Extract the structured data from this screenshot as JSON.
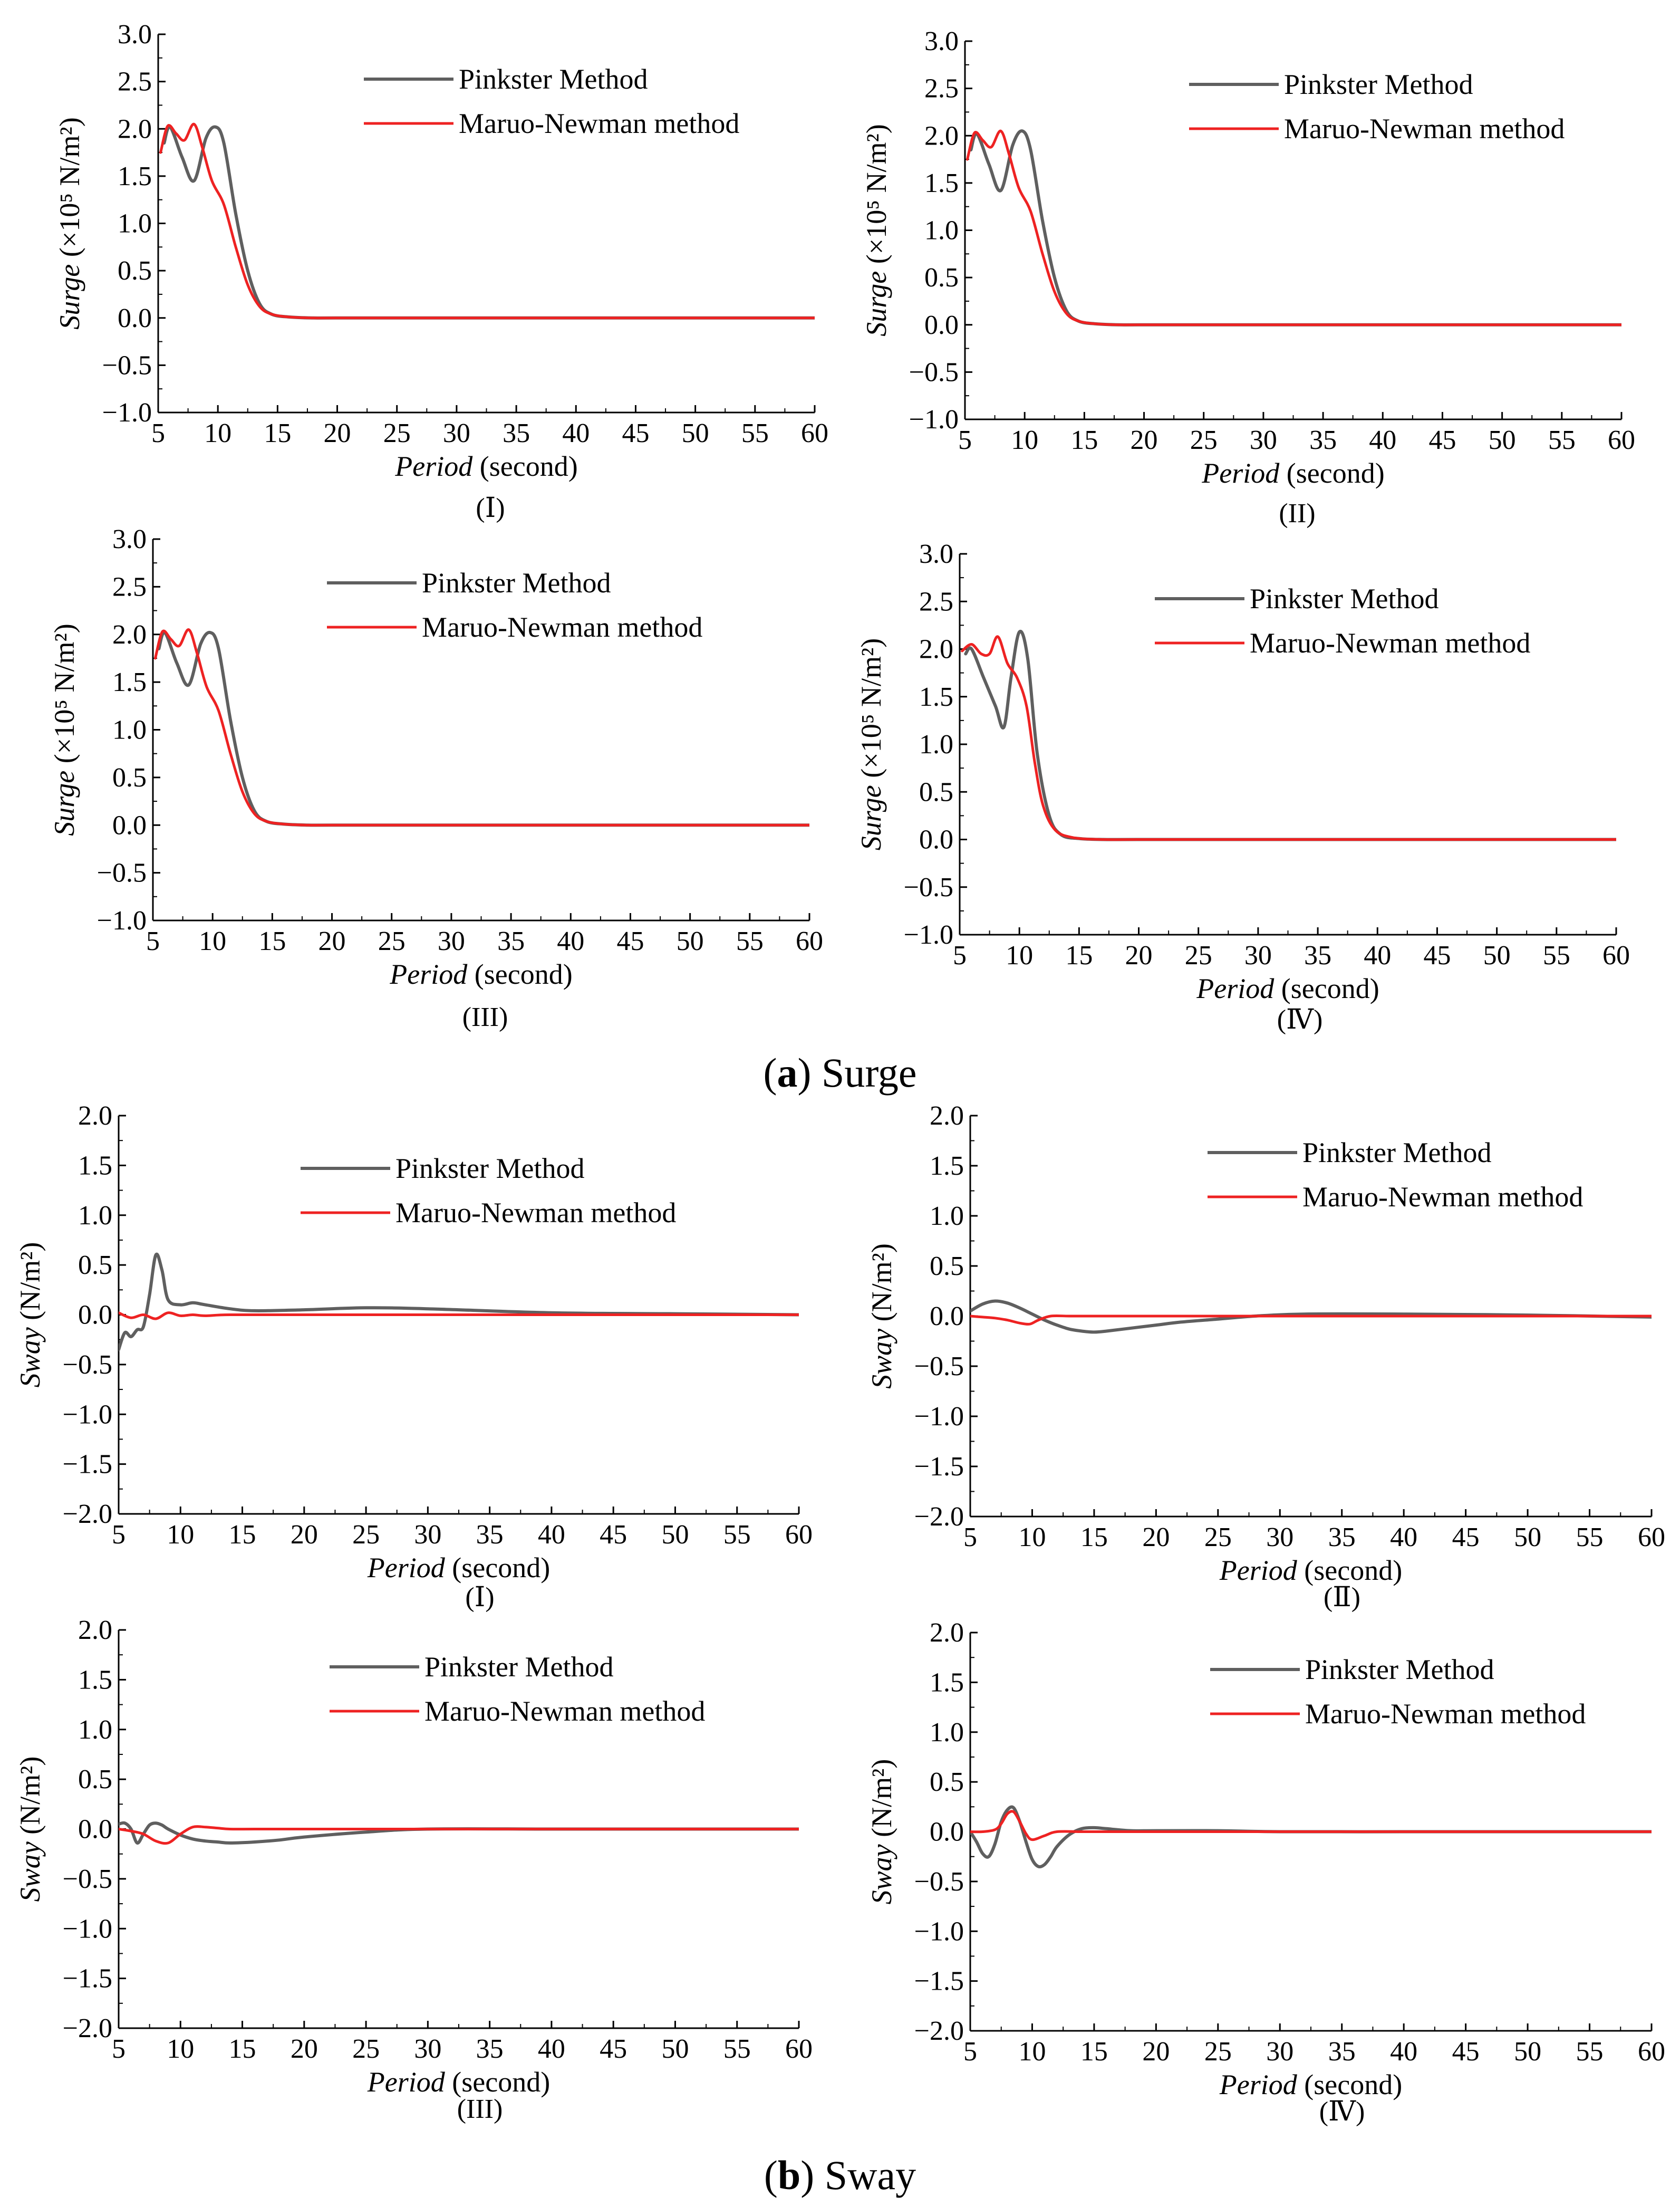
{
  "figure": {
    "caption_a": {
      "letter": "a",
      "text": "Surge"
    },
    "caption_b": {
      "letter": "b",
      "text": "Sway"
    }
  },
  "colors": {
    "pinkster": "#5f5f5f",
    "maruo": "#ee2222",
    "axis": "#000000"
  },
  "chart_data": [
    {
      "type": "line",
      "group": "a",
      "panel": "(Ⅰ)",
      "ylabel_var": "Surge",
      "ylabel_unit": " (×10⁵ N/m²)",
      "xlabel_var": "Period",
      "xlabel_unit": " (second)",
      "xlim": [
        5,
        60
      ],
      "ylim": [
        -1.0,
        3.0
      ],
      "xticks": [
        "5",
        "10",
        "15",
        "20",
        "25",
        "30",
        "35",
        "40",
        "45",
        "50",
        "55",
        "60"
      ],
      "yticks": [
        "−1.0",
        "−0.5",
        "0.0",
        "0.5",
        "1.0",
        "1.5",
        "2.0",
        "2.5",
        "3.0"
      ],
      "legend": [
        "Pinkster Method",
        "Maruo-Newman method"
      ],
      "series": [
        {
          "name": "Pinkster Method",
          "x": [
            5.5,
            6,
            7,
            8,
            9,
            9.8,
            10.5,
            11.5,
            12.5,
            13.5,
            14.5,
            16,
            18,
            20,
            30,
            40,
            50,
            60
          ],
          "y": [
            1.85,
            2.02,
            1.7,
            1.45,
            1.9,
            2.02,
            1.85,
            1.1,
            0.5,
            0.15,
            0.04,
            0.01,
            0,
            0,
            0,
            0,
            0,
            0
          ]
        },
        {
          "name": "Maruo-Newman method",
          "x": [
            5.2,
            5.8,
            6.5,
            7.2,
            8,
            8.7,
            9.5,
            10.5,
            11.5,
            12.5,
            13.5,
            14.5,
            16,
            18,
            20,
            30,
            40,
            50,
            60
          ],
          "y": [
            1.75,
            2.03,
            1.95,
            1.88,
            2.05,
            1.8,
            1.45,
            1.2,
            0.75,
            0.35,
            0.12,
            0.04,
            0.01,
            0,
            0,
            0,
            0,
            0,
            0
          ]
        }
      ]
    },
    {
      "type": "line",
      "group": "a",
      "panel": "(II)",
      "ylabel_var": "Surge",
      "ylabel_unit": " (×10⁵ N/m²)",
      "xlabel_var": "Period",
      "xlabel_unit": " (second)",
      "xlim": [
        5,
        60
      ],
      "ylim": [
        -1.0,
        3.0
      ],
      "xticks": [
        "5",
        "10",
        "15",
        "20",
        "25",
        "30",
        "35",
        "40",
        "45",
        "50",
        "55",
        "60"
      ],
      "yticks": [
        "−1.0",
        "−0.5",
        "0.0",
        "0.5",
        "1.0",
        "1.5",
        "2.0",
        "2.5",
        "3.0"
      ],
      "legend": [
        "Pinkster Method",
        "Maruo-Newman method"
      ],
      "series": [
        {
          "name": "Pinkster Method",
          "x": [
            5.5,
            6,
            7,
            8,
            9,
            9.8,
            10.5,
            11.5,
            12.5,
            13.5,
            14.5,
            16,
            18,
            20,
            30,
            40,
            50,
            60
          ],
          "y": [
            1.85,
            2.02,
            1.7,
            1.42,
            1.9,
            2.05,
            1.85,
            1.1,
            0.5,
            0.15,
            0.04,
            0.01,
            0,
            0,
            0,
            0,
            0,
            0
          ]
        },
        {
          "name": "Maruo-Newman method",
          "x": [
            5.2,
            5.8,
            6.5,
            7.2,
            8,
            8.7,
            9.5,
            10.5,
            11.5,
            12.5,
            13.5,
            14.5,
            16,
            18,
            20,
            30,
            40,
            50,
            60
          ],
          "y": [
            1.75,
            2.03,
            1.95,
            1.88,
            2.05,
            1.8,
            1.45,
            1.2,
            0.75,
            0.35,
            0.12,
            0.04,
            0.01,
            0,
            0,
            0,
            0,
            0,
            0
          ]
        }
      ]
    },
    {
      "type": "line",
      "group": "a",
      "panel": "(III)",
      "ylabel_var": "Surge",
      "ylabel_unit": " (×10⁵ N/m²)",
      "xlabel_var": "Period",
      "xlabel_unit": " (second)",
      "xlim": [
        5,
        60
      ],
      "ylim": [
        -1.0,
        3.0
      ],
      "xticks": [
        "5",
        "10",
        "15",
        "20",
        "25",
        "30",
        "35",
        "40",
        "45",
        "50",
        "55",
        "60"
      ],
      "yticks": [
        "−1.0",
        "−0.5",
        "0.0",
        "0.5",
        "1.0",
        "1.5",
        "2.0",
        "2.5",
        "3.0"
      ],
      "legend": [
        "Pinkster Method",
        "Maruo-Newman method"
      ],
      "series": [
        {
          "name": "Pinkster Method",
          "x": [
            5.5,
            6,
            7,
            8,
            9,
            9.8,
            10.5,
            11.5,
            12.5,
            13.5,
            14.5,
            16,
            18,
            20,
            30,
            40,
            50,
            60
          ],
          "y": [
            1.85,
            2.02,
            1.7,
            1.47,
            1.9,
            2.02,
            1.85,
            1.1,
            0.5,
            0.15,
            0.04,
            0.01,
            0,
            0,
            0,
            0,
            0,
            0
          ]
        },
        {
          "name": "Maruo-Newman method",
          "x": [
            5.2,
            5.8,
            6.5,
            7.2,
            8,
            8.7,
            9.5,
            10.5,
            11.5,
            12.5,
            13.5,
            14.5,
            16,
            18,
            20,
            30,
            40,
            50,
            60
          ],
          "y": [
            1.75,
            2.03,
            1.95,
            1.88,
            2.05,
            1.8,
            1.45,
            1.2,
            0.75,
            0.35,
            0.12,
            0.04,
            0.01,
            0,
            0,
            0,
            0,
            0,
            0
          ]
        }
      ]
    },
    {
      "type": "line",
      "group": "a",
      "panel": "(Ⅳ)",
      "ylabel_var": "Surge",
      "ylabel_unit": " (×10⁵ N/m²)",
      "xlabel_var": "Period",
      "xlabel_unit": " (second)",
      "xlim": [
        5,
        60
      ],
      "ylim": [
        -1.0,
        3.0
      ],
      "xticks": [
        "5",
        "10",
        "15",
        "20",
        "25",
        "30",
        "35",
        "40",
        "45",
        "50",
        "55",
        "60"
      ],
      "yticks": [
        "−1.0",
        "−0.5",
        "0.0",
        "0.5",
        "1.0",
        "1.5",
        "2.0",
        "2.5",
        "3.0"
      ],
      "legend": [
        "Pinkster Method",
        "Maruo-Newman method"
      ],
      "series": [
        {
          "name": "Pinkster Method",
          "x": [
            5.5,
            6,
            7,
            8,
            8.7,
            9.3,
            10,
            10.7,
            11.5,
            12.5,
            13.5,
            15,
            17,
            20,
            30,
            40,
            50,
            60
          ],
          "y": [
            1.95,
            2.0,
            1.7,
            1.4,
            1.18,
            1.7,
            2.18,
            1.9,
            0.9,
            0.25,
            0.05,
            0.01,
            0,
            0,
            0,
            0,
            0,
            0
          ]
        },
        {
          "name": "Maruo-Newman method",
          "x": [
            5.2,
            6,
            6.8,
            7.5,
            8.2,
            9,
            9.8,
            10.6,
            11.3,
            12,
            13,
            14.5,
            17,
            20,
            30,
            40,
            50,
            60
          ],
          "y": [
            1.98,
            2.05,
            1.95,
            1.95,
            2.13,
            1.85,
            1.7,
            1.4,
            0.8,
            0.35,
            0.1,
            0.02,
            0,
            0,
            0,
            0,
            0,
            0
          ]
        }
      ]
    },
    {
      "type": "line",
      "group": "b",
      "panel": "(Ⅰ)",
      "ylabel_var": "Sway",
      "ylabel_unit": " (N/m²)",
      "xlabel_var": "Period",
      "xlabel_unit": " (second)",
      "xlim": [
        5,
        60
      ],
      "ylim": [
        -2.0,
        2.0
      ],
      "xticks": [
        "5",
        "10",
        "15",
        "20",
        "25",
        "30",
        "35",
        "40",
        "45",
        "50",
        "55",
        "60"
      ],
      "yticks": [
        "−2.0",
        "−1.5",
        "−1.0",
        "−0.5",
        "0.0",
        "0.5",
        "1.0",
        "1.5",
        "2.0"
      ],
      "legend": [
        "Pinkster Method",
        "Maruo-Newman method"
      ],
      "series": [
        {
          "name": "Pinkster Method",
          "x": [
            5,
            5.5,
            6,
            6.5,
            7,
            7.5,
            8,
            8.5,
            9,
            10,
            11,
            12,
            14,
            16,
            20,
            25,
            30,
            40,
            50,
            60
          ],
          "y": [
            -0.35,
            -0.18,
            -0.22,
            -0.15,
            -0.12,
            0.2,
            0.6,
            0.45,
            0.15,
            0.1,
            0.12,
            0.1,
            0.06,
            0.04,
            0.05,
            0.07,
            0.06,
            0.02,
            0.01,
            0
          ]
        },
        {
          "name": "Maruo-Newman method",
          "x": [
            5,
            6,
            7,
            8,
            9,
            10,
            11,
            12,
            14,
            20,
            30,
            40,
            50,
            60
          ],
          "y": [
            0.02,
            -0.03,
            0.0,
            -0.04,
            0.02,
            -0.01,
            0.0,
            -0.01,
            0.0,
            0,
            0,
            0,
            0,
            0
          ]
        }
      ]
    },
    {
      "type": "line",
      "group": "b",
      "panel": "(Ⅱ)",
      "ylabel_var": "Sway",
      "ylabel_unit": " (N/m²)",
      "xlabel_var": "Period",
      "xlabel_unit": " (second)",
      "xlim": [
        5,
        60
      ],
      "ylim": [
        -2.0,
        2.0
      ],
      "xticks": [
        "5",
        "10",
        "15",
        "20",
        "25",
        "30",
        "35",
        "40",
        "45",
        "50",
        "55",
        "60"
      ],
      "yticks": [
        "−2.0",
        "−1.5",
        "−1.0",
        "−0.5",
        "0.0",
        "0.5",
        "1.0",
        "1.5",
        "2.0"
      ],
      "legend": [
        "Pinkster Method",
        "Maruo-Newman method"
      ],
      "series": [
        {
          "name": "Pinkster Method",
          "x": [
            5,
            6,
            7,
            8,
            9,
            10,
            11,
            12,
            13,
            14,
            15,
            16,
            18,
            20,
            22,
            25,
            28,
            32,
            40,
            50,
            60
          ],
          "y": [
            0.05,
            0.12,
            0.15,
            0.13,
            0.08,
            0.02,
            -0.04,
            -0.09,
            -0.13,
            -0.15,
            -0.16,
            -0.15,
            -0.12,
            -0.09,
            -0.06,
            -0.03,
            0,
            0.02,
            0.02,
            0.01,
            -0.01
          ]
        },
        {
          "name": "Maruo-Newman method",
          "x": [
            5,
            6,
            7,
            8,
            9,
            9.8,
            10.5,
            11.5,
            13,
            15,
            20,
            30,
            40,
            50,
            60
          ],
          "y": [
            0.0,
            -0.01,
            -0.02,
            -0.04,
            -0.07,
            -0.08,
            -0.04,
            0.0,
            0.0,
            0,
            0,
            0,
            0,
            0,
            0
          ]
        }
      ]
    },
    {
      "type": "line",
      "group": "b",
      "panel": "(III)",
      "ylabel_var": "Sway",
      "ylabel_unit": " (N/m²)",
      "xlabel_var": "Period",
      "xlabel_unit": " (second)",
      "xlim": [
        5,
        60
      ],
      "ylim": [
        -2.0,
        2.0
      ],
      "xticks": [
        "5",
        "10",
        "15",
        "20",
        "25",
        "30",
        "35",
        "40",
        "45",
        "50",
        "55",
        "60"
      ],
      "yticks": [
        "−2.0",
        "−1.5",
        "−1.0",
        "−0.5",
        "0.0",
        "0.5",
        "1.0",
        "1.5",
        "2.0"
      ],
      "legend": [
        "Pinkster Method",
        "Maruo-Newman method"
      ],
      "series": [
        {
          "name": "Pinkster Method",
          "x": [
            5,
            5.5,
            6,
            6.5,
            7,
            7.5,
            8,
            8.5,
            9,
            10,
            11,
            12,
            13,
            14,
            16,
            18,
            20,
            25,
            30,
            40,
            50,
            60
          ],
          "y": [
            0.05,
            0.06,
            0.0,
            -0.14,
            -0.05,
            0.04,
            0.06,
            0.04,
            0.0,
            -0.06,
            -0.1,
            -0.12,
            -0.13,
            -0.14,
            -0.13,
            -0.11,
            -0.08,
            -0.03,
            0,
            0,
            0,
            0
          ]
        },
        {
          "name": "Maruo-Newman method",
          "x": [
            5,
            6,
            7,
            8,
            9,
            10,
            11,
            12,
            13,
            14,
            16,
            20,
            30,
            40,
            50,
            60
          ],
          "y": [
            0.0,
            -0.02,
            -0.05,
            -0.12,
            -0.14,
            -0.05,
            0.02,
            0.02,
            0.01,
            0.0,
            0,
            0,
            0,
            0,
            0,
            0
          ]
        }
      ]
    },
    {
      "type": "line",
      "group": "b",
      "panel": "(Ⅳ)",
      "ylabel_var": "Sway",
      "ylabel_unit": " (N/m²)",
      "xlabel_var": "Period",
      "xlabel_unit": " (second)",
      "xlim": [
        5,
        60
      ],
      "ylim": [
        -2.0,
        2.0
      ],
      "xticks": [
        "5",
        "10",
        "15",
        "20",
        "25",
        "30",
        "35",
        "40",
        "45",
        "50",
        "55",
        "60"
      ],
      "yticks": [
        "−2.0",
        "−1.5",
        "−1.0",
        "−0.5",
        "0.0",
        "0.5",
        "1.0",
        "1.5",
        "2.0"
      ],
      "legend": [
        "Pinkster Method",
        "Maruo-Newman method"
      ],
      "series": [
        {
          "name": "Pinkster Method",
          "x": [
            5,
            5.5,
            6,
            6.5,
            7,
            7.5,
            8,
            8.5,
            9,
            9.5,
            10,
            10.5,
            11,
            11.5,
            12,
            13,
            14,
            15,
            16,
            18,
            20,
            25,
            30,
            40,
            50,
            60
          ],
          "y": [
            0.0,
            -0.1,
            -0.22,
            -0.25,
            -0.12,
            0.1,
            0.22,
            0.24,
            0.1,
            -0.1,
            -0.28,
            -0.35,
            -0.33,
            -0.25,
            -0.15,
            -0.03,
            0.03,
            0.04,
            0.03,
            0.01,
            0.01,
            0.01,
            0,
            0,
            0,
            0
          ]
        },
        {
          "name": "Maruo-Newman method",
          "x": [
            5,
            6,
            7,
            7.5,
            8,
            8.5,
            9,
            9.5,
            10,
            11,
            12,
            14,
            16,
            20,
            30,
            40,
            50,
            60
          ],
          "y": [
            0.0,
            0.0,
            0.02,
            0.08,
            0.18,
            0.2,
            0.1,
            -0.02,
            -0.08,
            -0.04,
            0.0,
            0.0,
            0,
            0,
            0,
            0,
            0,
            0
          ]
        }
      ]
    }
  ]
}
